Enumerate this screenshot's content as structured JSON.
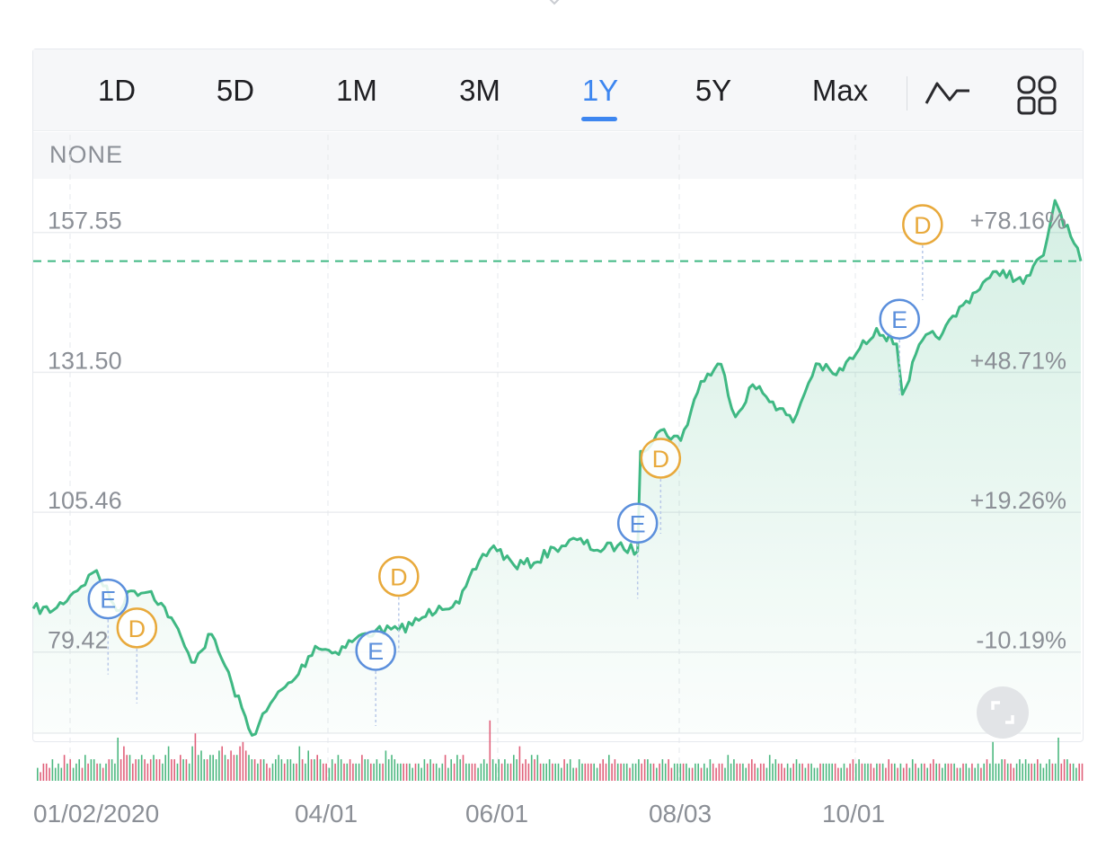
{
  "range_tabs": [
    {
      "label": "1D",
      "active": false
    },
    {
      "label": "5D",
      "active": false
    },
    {
      "label": "1M",
      "active": false
    },
    {
      "label": "3M",
      "active": false
    },
    {
      "label": "1Y",
      "active": true
    },
    {
      "label": "5Y",
      "active": false
    },
    {
      "label": "Max",
      "active": false
    }
  ],
  "toolbar": {
    "chart_style_icon": "line-chart-icon",
    "layout_icon": "grid-layout-icon"
  },
  "indicator": {
    "label": "NONE"
  },
  "colors": {
    "line": "#3fb883",
    "active_tab": "#3d86f0",
    "earnings_marker": "#5b8fdc",
    "dividend_marker": "#e8a93b",
    "volume_up": "#4cb880",
    "volume_down": "#e0607a"
  },
  "chart_data": {
    "type": "line",
    "x_start": "01/02/2020",
    "ylim": [
      61.3,
      164.7
    ],
    "y_ticks": [
      {
        "price": "157.55",
        "change": "+78.16%"
      },
      {
        "price": "131.50",
        "change": "+48.71%"
      },
      {
        "price": "105.46",
        "change": "+19.26%"
      },
      {
        "price": "79.42",
        "change": "-10.19%"
      }
    ],
    "x_ticks": [
      "01/02/2020",
      "04/01",
      "06/01",
      "08/03",
      "10/01"
    ],
    "last_price_line": 149.2,
    "series": [
      {
        "x": [
          "2020-01-02",
          "2020-01-09",
          "2020-01-16",
          "2020-01-24",
          "2020-01-31",
          "2020-02-05",
          "2020-02-12",
          "2020-02-19",
          "2020-02-26",
          "2020-03-04",
          "2020-03-11",
          "2020-03-18",
          "2020-03-23",
          "2020-03-26",
          "2020-04-02",
          "2020-04-09",
          "2020-04-16",
          "2020-04-23",
          "2020-04-30",
          "2020-05-08",
          "2020-05-15",
          "2020-05-22",
          "2020-05-29",
          "2020-06-05",
          "2020-06-10",
          "2020-06-17",
          "2020-06-24",
          "2020-07-01",
          "2020-07-09",
          "2020-07-16",
          "2020-07-23",
          "2020-07-30",
          "2020-07-31",
          "2020-08-07",
          "2020-08-14",
          "2020-08-21",
          "2020-08-28",
          "2020-09-02",
          "2020-09-08",
          "2020-09-15",
          "2020-09-22",
          "2020-09-30",
          "2020-10-07",
          "2020-10-14",
          "2020-10-21",
          "2020-10-28",
          "2020-10-30",
          "2020-11-06",
          "2020-11-13",
          "2020-11-20",
          "2020-11-27",
          "2020-12-04",
          "2020-12-11",
          "2020-12-18",
          "2020-12-22",
          "2020-12-24",
          "2020-12-31"
        ],
        "values": [
          84.5,
          84.2,
          87.5,
          91.6,
          84.1,
          87.8,
          87.7,
          82.8,
          74.5,
          79.7,
          70.6,
          60.9,
          65.4,
          68.0,
          71.5,
          77.5,
          76.4,
          78.9,
          80.4,
          80.5,
          82.3,
          85.0,
          85.5,
          93.4,
          96.2,
          92.6,
          93.0,
          95.8,
          97.3,
          95.4,
          96.2,
          95.2,
          113.8,
          117.7,
          115.8,
          126.8,
          130.0,
          120.2,
          126.2,
          123.0,
          119.2,
          130.1,
          128.0,
          132.0,
          136.7,
          133.8,
          124.4,
          134.5,
          135.8,
          141.0,
          145.2,
          147.5,
          145.0,
          150.3,
          160.5,
          158.0,
          149.2
        ]
      }
    ],
    "events": [
      {
        "type": "E",
        "date": "2020-01-28",
        "value": 86.3
      },
      {
        "type": "D",
        "date": "2020-02-07",
        "value": 80.9
      },
      {
        "type": "E",
        "date": "2020-04-30",
        "value": 76.7
      },
      {
        "type": "D",
        "date": "2020-05-08",
        "value": 90.5
      },
      {
        "type": "E",
        "date": "2020-07-30",
        "value": 100.4
      },
      {
        "type": "D",
        "date": "2020-08-07",
        "value": 112.5
      },
      {
        "type": "E",
        "date": "2020-10-29",
        "value": 138.4
      },
      {
        "type": "D",
        "date": "2020-11-06",
        "value": 156.0
      }
    ],
    "volume": [
      3,
      2,
      4,
      4,
      3,
      5,
      3,
      4,
      3,
      6,
      4,
      5,
      3,
      4,
      5,
      3,
      6,
      4,
      5,
      5,
      4,
      4,
      3,
      4,
      5,
      5,
      4,
      10,
      5,
      8,
      6,
      6,
      4,
      5,
      5,
      6,
      5,
      4,
      5,
      6,
      5,
      5,
      4,
      6,
      8,
      5,
      5,
      4,
      6,
      5,
      5,
      4,
      8,
      11,
      6,
      7,
      5,
      5,
      6,
      6,
      5,
      7,
      8,
      6,
      5,
      7,
      6,
      6,
      8,
      9,
      7,
      6,
      5,
      5,
      4,
      5,
      5,
      4,
      3,
      4,
      5,
      6,
      5,
      4,
      5,
      5,
      4,
      4,
      8,
      5,
      4,
      7,
      5,
      5,
      6,
      5,
      4,
      4,
      3,
      5,
      4,
      6,
      5,
      4,
      4,
      5,
      4,
      4,
      4,
      6,
      5,
      5,
      4,
      4,
      5,
      4,
      4,
      7,
      5,
      6,
      5,
      4,
      4,
      4,
      4,
      4,
      3,
      4,
      4,
      3,
      5,
      4,
      5,
      4,
      4,
      3,
      4,
      6,
      3,
      5,
      4,
      6,
      5,
      6,
      4,
      4,
      4,
      4,
      3,
      4,
      5,
      4,
      14,
      5,
      4,
      5,
      4,
      5,
      4,
      4,
      6,
      5,
      8,
      4,
      5,
      4,
      6,
      5,
      6,
      4,
      4,
      4,
      5,
      4,
      4,
      4,
      3,
      5,
      4,
      5,
      3,
      3,
      5,
      4,
      4,
      4,
      4,
      4,
      3,
      4,
      5,
      4,
      6,
      4,
      5,
      4,
      4,
      4,
      4,
      3,
      4,
      4,
      5,
      4,
      5,
      5,
      4,
      4,
      3,
      4,
      5,
      4,
      5,
      3,
      4,
      4,
      4,
      4,
      4,
      3,
      3,
      4,
      4,
      3,
      4,
      3,
      5,
      4,
      3,
      4,
      4,
      3,
      6,
      4,
      5,
      4,
      4,
      4,
      3,
      4,
      5,
      4,
      3,
      4,
      4,
      3,
      6,
      4,
      5,
      4,
      4,
      3,
      4,
      3,
      4,
      5,
      4,
      4,
      3,
      4,
      4,
      3,
      3,
      4,
      4,
      4,
      4,
      4,
      4,
      3,
      3,
      4,
      3,
      4,
      5,
      4,
      5,
      4,
      4,
      4,
      4,
      3,
      4,
      4,
      4,
      3,
      5,
      4,
      4,
      3,
      4,
      3,
      4,
      3,
      5,
      4,
      3,
      4,
      4,
      3,
      4,
      5,
      4,
      4,
      3,
      4,
      4,
      4,
      4,
      3,
      3,
      4,
      4,
      3,
      4,
      3,
      4,
      3,
      4,
      5,
      4,
      9,
      4,
      4,
      5,
      5,
      4,
      4,
      3,
      4,
      5,
      4,
      5,
      4,
      4,
      4,
      5,
      4,
      3,
      4,
      5,
      4,
      4,
      10,
      4,
      5,
      5,
      4,
      4,
      3,
      4,
      4
    ],
    "volume_up": [
      true,
      false,
      false,
      false,
      false,
      true,
      true,
      true,
      true,
      false,
      true,
      false,
      true,
      true,
      true,
      false,
      true,
      false,
      true,
      true,
      false,
      true,
      false,
      true,
      false,
      true,
      true,
      true,
      false,
      false,
      false,
      true,
      false,
      false,
      true,
      true,
      false,
      false,
      false,
      true,
      false,
      false,
      true,
      true,
      true,
      false,
      false,
      true,
      false,
      true,
      false,
      true,
      true,
      false,
      true,
      true,
      true,
      false,
      true,
      true,
      true,
      true,
      false,
      true,
      false,
      false,
      false,
      true,
      false,
      false,
      false,
      true,
      true,
      false,
      true,
      false,
      true,
      false,
      false,
      true,
      true,
      true,
      true,
      false,
      true,
      true,
      true,
      false,
      true,
      false,
      true,
      true,
      false,
      true,
      false,
      true,
      false,
      false,
      true,
      true,
      false,
      true,
      true,
      false,
      true,
      false,
      false,
      true,
      true,
      false,
      true,
      true,
      false,
      true,
      true,
      true,
      false,
      true,
      true,
      true,
      true,
      true,
      true,
      false,
      false,
      true,
      true,
      false,
      true,
      true,
      true,
      false,
      true,
      false,
      true,
      true,
      true,
      false,
      true,
      true,
      false,
      true,
      true,
      false,
      true,
      true,
      false,
      false,
      true,
      true,
      true,
      true,
      false,
      true,
      true,
      true,
      false,
      true,
      true,
      false,
      true,
      true,
      false,
      false,
      false,
      false,
      true,
      false,
      true,
      false,
      true,
      true,
      true,
      false,
      true,
      true,
      true,
      false,
      true,
      true,
      true,
      false,
      true,
      true,
      false,
      false,
      false,
      true,
      true,
      false,
      false,
      false,
      true,
      false,
      false,
      true,
      false,
      true,
      true,
      false,
      true,
      true,
      true,
      false,
      false,
      true,
      true,
      false,
      true,
      false,
      true,
      true,
      false,
      false,
      true,
      true,
      true,
      false,
      true,
      true,
      false,
      true,
      true,
      false,
      true,
      true,
      true,
      false,
      false,
      false,
      false,
      true,
      true,
      true,
      true,
      false,
      false,
      true,
      true,
      false,
      false,
      false,
      true,
      false,
      false,
      true,
      true,
      true,
      true,
      false,
      false,
      false,
      true,
      true,
      false,
      true,
      true,
      false,
      true,
      false,
      true,
      true,
      true,
      false,
      true,
      true,
      true,
      true,
      false,
      false,
      true,
      true,
      false,
      false,
      false,
      true,
      true,
      false,
      true,
      true,
      false,
      false,
      true,
      false,
      true,
      false,
      false,
      false,
      true,
      false,
      true,
      false,
      false,
      true,
      true,
      false,
      true,
      true,
      false,
      true,
      false,
      false,
      true,
      false,
      true,
      true,
      false,
      false,
      true,
      false,
      true,
      false,
      true,
      true,
      false,
      true,
      true,
      false,
      true,
      false,
      true,
      true,
      true,
      true,
      true,
      false,
      true,
      false,
      false,
      true,
      true,
      true,
      true,
      true,
      false,
      true,
      false,
      true,
      true,
      true,
      true,
      false,
      true,
      true,
      false,
      false,
      true,
      false,
      true,
      true
    ]
  }
}
